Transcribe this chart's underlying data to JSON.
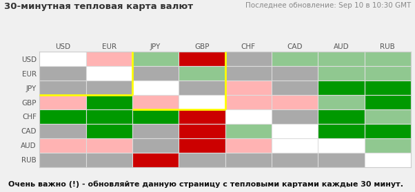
{
  "title": "30-минутная тепловая карта валют",
  "subtitle": "Последнее обновление: Sep 10 в 10:30 GMT",
  "footer": "Очень важно (!) - обновляйте данную страницу с тепловыми картами каждые 30 минут.",
  "currencies": [
    "USD",
    "EUR",
    "JPY",
    "GBP",
    "CHF",
    "CAD",
    "AUD",
    "RUB"
  ],
  "rows": [
    "USD",
    "EUR",
    "JPY",
    "GBP",
    "CHF",
    "CAD",
    "AUD",
    "RUB"
  ],
  "colors": [
    [
      "#ffffff",
      "#ffb3b3",
      "#90c890",
      "#cc0000",
      "#aaaaaa",
      "#90c890",
      "#90c890",
      "#90c890"
    ],
    [
      "#aaaaaa",
      "#ffffff",
      "#aaaaaa",
      "#90c890",
      "#aaaaaa",
      "#aaaaaa",
      "#90c890",
      "#90c890"
    ],
    [
      "#aaaaaa",
      "#aaaaaa",
      "#ffffff",
      "#aaaaaa",
      "#ffb3b3",
      "#aaaaaa",
      "#009900",
      "#009900"
    ],
    [
      "#ffb3b3",
      "#009900",
      "#ffb3b3",
      "#ffffff",
      "#ffb3b3",
      "#ffb3b3",
      "#90c890",
      "#009900"
    ],
    [
      "#009900",
      "#009900",
      "#009900",
      "#cc0000",
      "#ffffff",
      "#aaaaaa",
      "#009900",
      "#90c890"
    ],
    [
      "#aaaaaa",
      "#009900",
      "#aaaaaa",
      "#cc0000",
      "#90c890",
      "#ffffff",
      "#009900",
      "#009900"
    ],
    [
      "#ffb3b3",
      "#ffb3b3",
      "#aaaaaa",
      "#cc0000",
      "#ffb3b3",
      "#ffffff",
      "#ffffff",
      "#90c890"
    ],
    [
      "#aaaaaa",
      "#aaaaaa",
      "#cc0000",
      "#aaaaaa",
      "#aaaaaa",
      "#aaaaaa",
      "#aaaaaa",
      "#ffffff"
    ]
  ],
  "bg_color": "#ffffff",
  "outer_bg": "#f0f0f0",
  "cell_edge_color": "#e0e0e0",
  "title_color": "#333333",
  "subtitle_color": "#888888",
  "footer_color": "#111111"
}
